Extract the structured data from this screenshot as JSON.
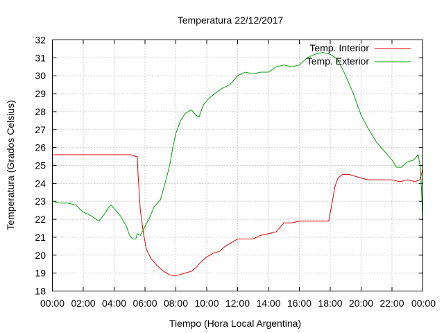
{
  "chart_data": {
    "type": "line",
    "title": "Temperatura 22/12/2017",
    "xlabel": "Tiempo (Hora Local Argentina)",
    "ylabel": "Temperatura (Grados Celsius)",
    "xlim": [
      0,
      24
    ],
    "ylim": [
      18,
      32
    ],
    "x_tick_labels": [
      "00:00",
      "02:00",
      "04:00",
      "06:00",
      "08:00",
      "10:00",
      "12:00",
      "14:00",
      "16:00",
      "18:00",
      "20:00",
      "22:00",
      "00:00"
    ],
    "y_tick_labels": [
      "18",
      "19",
      "20",
      "21",
      "22",
      "23",
      "24",
      "25",
      "26",
      "27",
      "28",
      "29",
      "30",
      "31",
      "32"
    ],
    "grid": true,
    "legend_position": "top-right",
    "series": [
      {
        "name": "Temp. Interior",
        "color": "#e00000",
        "x": [
          0,
          1,
          2,
          3,
          4,
          5,
          5.1,
          5.4,
          5.5,
          5.55,
          5.7,
          5.9,
          6.1,
          6.4,
          6.8,
          7.2,
          7.6,
          7.9,
          8.2,
          8.6,
          9.0,
          9.3,
          9.6,
          10.0,
          10.4,
          10.8,
          11.2,
          11.6,
          12.0,
          12.5,
          13.0,
          13.5,
          14.0,
          14.5,
          15.0,
          15.5,
          16.0,
          16.5,
          17.0,
          17.5,
          17.9,
          18.1,
          18.3,
          18.5,
          18.8,
          19.2,
          19.6,
          20.0,
          20.5,
          21.0,
          21.5,
          22.0,
          22.5,
          23.0,
          23.5,
          23.8,
          24.0
        ],
        "values": [
          25.6,
          25.6,
          25.6,
          25.6,
          25.6,
          25.6,
          25.6,
          25.5,
          25.5,
          24.5,
          22.5,
          21.2,
          20.3,
          19.8,
          19.4,
          19.1,
          18.9,
          18.85,
          18.9,
          19.0,
          19.1,
          19.3,
          19.6,
          19.9,
          20.1,
          20.2,
          20.5,
          20.7,
          20.9,
          20.9,
          20.9,
          21.1,
          21.2,
          21.3,
          21.8,
          21.8,
          21.9,
          21.9,
          21.9,
          21.9,
          21.9,
          22.8,
          23.8,
          24.3,
          24.5,
          24.5,
          24.4,
          24.3,
          24.2,
          24.2,
          24.2,
          24.2,
          24.1,
          24.2,
          24.1,
          24.2,
          24.8
        ]
      },
      {
        "name": "Temp. Exterior",
        "color": "#00a000",
        "x": [
          0,
          0.5,
          1.0,
          1.5,
          2.0,
          2.5,
          3.0,
          3.3,
          3.6,
          3.8,
          4.0,
          4.4,
          4.8,
          5.0,
          5.2,
          5.4,
          5.5,
          5.7,
          6.0,
          6.3,
          6.6,
          7.0,
          7.3,
          7.6,
          7.8,
          8.0,
          8.3,
          8.6,
          9.0,
          9.3,
          9.5,
          9.8,
          10.1,
          10.5,
          11.0,
          11.5,
          12.0,
          12.5,
          13.0,
          13.5,
          14.0,
          14.5,
          15.0,
          15.5,
          16.0,
          16.5,
          17.0,
          17.5,
          18.0,
          18.5,
          19.0,
          19.5,
          20.0,
          20.5,
          21.0,
          21.5,
          22.0,
          22.3,
          22.6,
          23.0,
          23.4,
          23.7,
          23.85,
          24.0
        ],
        "values": [
          23.0,
          22.9,
          22.9,
          22.8,
          22.4,
          22.2,
          21.9,
          22.2,
          22.6,
          22.8,
          22.6,
          22.2,
          21.6,
          21.1,
          20.9,
          20.9,
          21.2,
          21.1,
          21.6,
          22.1,
          22.7,
          23.1,
          24.0,
          25.0,
          26.0,
          26.8,
          27.5,
          27.9,
          28.1,
          27.8,
          27.7,
          28.4,
          28.7,
          29.0,
          29.3,
          29.5,
          30.0,
          30.2,
          30.1,
          30.2,
          30.2,
          30.5,
          30.6,
          30.5,
          30.6,
          31.0,
          31.2,
          31.3,
          31.2,
          30.9,
          30.0,
          29.0,
          27.8,
          27.0,
          26.3,
          25.8,
          25.3,
          24.9,
          24.9,
          25.2,
          25.3,
          25.6,
          24.8,
          21.9
        ]
      }
    ]
  }
}
